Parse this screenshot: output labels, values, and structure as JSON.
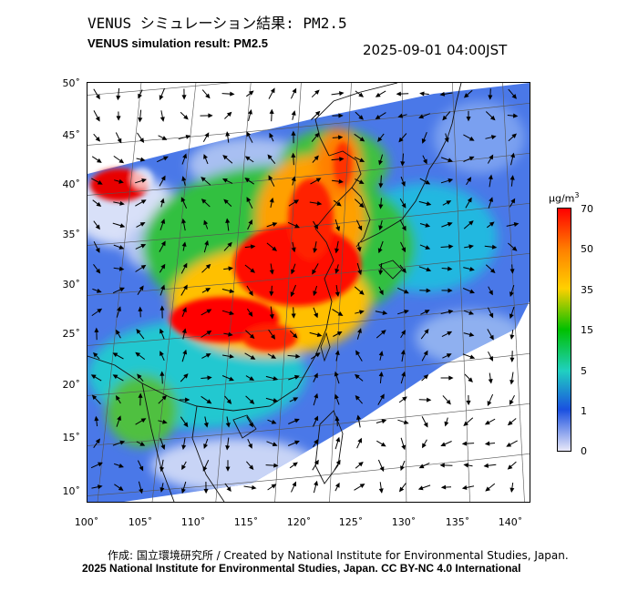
{
  "title_jp": "VENUS シミュレーション結果: PM2.5",
  "title_en": "VENUS simulation result: PM2.5",
  "timestamp": "2025-09-01 04:00JST",
  "lat_labels": [
    "50˚",
    "45˚",
    "40˚",
    "35˚",
    "30˚",
    "25˚",
    "20˚",
    "15˚",
    "10˚"
  ],
  "lon_labels": [
    "100˚",
    "105˚",
    "110˚",
    "115˚",
    "120˚",
    "125˚",
    "130˚",
    "135˚",
    "140˚"
  ],
  "colorbar": {
    "unit": "μg/m",
    "unit_sup": "3",
    "ticks": [
      "70",
      "50",
      "35",
      "15",
      "5",
      "1",
      "0"
    ],
    "colors": [
      "#ff0000",
      "#ff8000",
      "#ffd000",
      "#00c000",
      "#20d0c0",
      "#1a50e0",
      "#e8e8f8"
    ]
  },
  "credit_jp": "作成: 国立環境研究所 / Created by National Institute for Environmental Studies, Japan.",
  "credit_en": "2025 National Institute for Environmental Studies, Japan. CC BY-NC 4.0 International"
}
